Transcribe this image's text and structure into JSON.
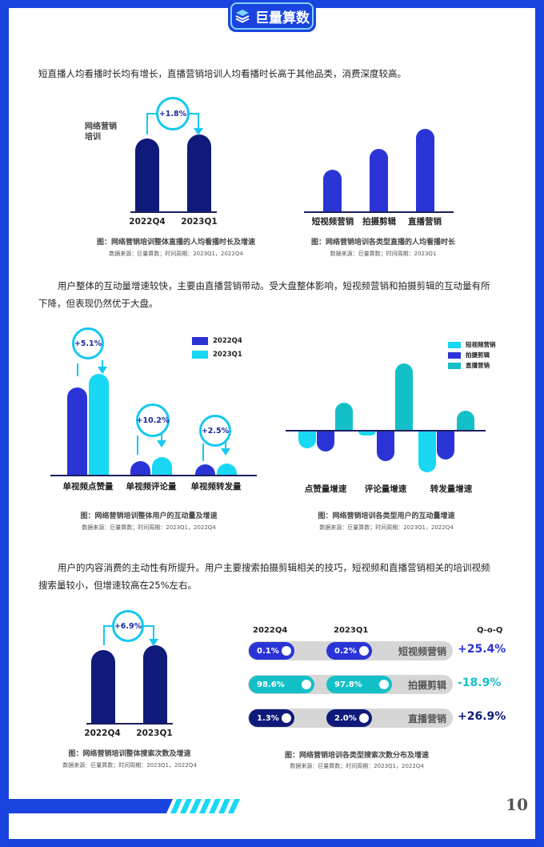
{
  "logo": {
    "text": "巨量算数",
    "icon": "brand-logo-icon"
  },
  "paragraphs": {
    "p1": "短直播人均看播时长均有增长，直播营销培训人均看播时长高于其他品类，消费深度较高。",
    "p2a": "用户整体的互动量增速较快，主要由直播营销带动。受大盘整体影响，短视频营销和拍摄剪辑的互动量有所",
    "p2b": "下降，但表现仍然优于大盘。",
    "p3a": "用户的内容消费的主动性有所提升。用户主要搜索拍摄剪辑相关的技巧，短视频和直播营销相关的培训视频",
    "p3b": "搜索量较小，但增速较高在25%左右。"
  },
  "chart1": {
    "side_label": "网络营销\n培训",
    "bubble": "+1.8%",
    "categories": [
      "2022Q4",
      "2023Q1"
    ],
    "caption": "图：网络营销培训整体直播的人均看播时长及增速",
    "source": "数据来源：巨量算数；时间周期：2023Q1，2022Q4"
  },
  "chart2": {
    "categories": [
      "短视频营销",
      "拍摄剪辑",
      "直播营销"
    ],
    "caption": "图：网络营销培训各类型直播的人均看播时长",
    "source": "数据来源：巨量算数；时间周期：2023Q1"
  },
  "chart3": {
    "legend": [
      "2022Q4",
      "2023Q1"
    ],
    "bubbles": [
      "+5.1%",
      "+10.2%",
      "+2.5%"
    ],
    "categories": [
      "单视频点赞量",
      "单视频评论量",
      "单视频转发量"
    ],
    "caption": "图：网络营销培训整体用户的互动量及增速",
    "source": "数据来源：巨量算数；时间周期：2023Q1，2022Q4"
  },
  "chart4": {
    "legend": [
      "短视频营销",
      "拍摄剪辑",
      "直播营销"
    ],
    "categories": [
      "点赞量增速",
      "评论量增速",
      "转发量增速"
    ],
    "caption": "图：网络营销培训各类型用户的互动量增速",
    "source": "数据来源：巨量算数；时间周期：2023Q1，2022Q4"
  },
  "chart5": {
    "bubble": "+6.9%",
    "categories": [
      "2022Q4",
      "2023Q1"
    ],
    "caption": "图：网络营销培训整体搜索次数及增速",
    "source": "数据来源：巨量算数；时间周期：2023Q1，2022Q4"
  },
  "chart6": {
    "headers": {
      "q4": "2022Q4",
      "q1": "2023Q1",
      "qoq": "Q-o-Q"
    },
    "rows": [
      {
        "q4": "0.1%",
        "q1": "0.2%",
        "label": "短视频营销",
        "qoq": "+25.4%"
      },
      {
        "q4": "98.6%",
        "q1": "97.8%",
        "label": "拍摄剪辑",
        "qoq": "-18.9%"
      },
      {
        "q4": "1.3%",
        "q1": "2.0%",
        "label": "直播营销",
        "qoq": "+26.9%"
      }
    ],
    "caption": "图：网络营销培训各类型搜索次数分布及增速",
    "source": "数据来源：巨量算数；时间周期：2023Q1，2022Q4"
  },
  "colors": {
    "navy": "#0f1a7a",
    "blue": "#2a34d6",
    "cyan": "#18d8f4",
    "teal": "#14c0c8",
    "page_border": "#1a44e0"
  },
  "page_number": "10",
  "chart_data": [
    {
      "type": "bar",
      "categories": [
        "2022Q4",
        "2023Q1"
      ],
      "annotations": [
        "+1.8%"
      ]
    },
    {
      "type": "bar",
      "categories": [
        "短视频营销",
        "拍摄剪辑",
        "直播营销"
      ]
    },
    {
      "type": "bar",
      "categories": [
        "单视频点赞量",
        "单视频评论量",
        "单视频转发量"
      ],
      "series": [
        {
          "name": "2022Q4"
        },
        {
          "name": "2023Q1"
        }
      ],
      "annotations": [
        "+5.1%",
        "+10.2%",
        "+2.5%"
      ]
    },
    {
      "type": "bar",
      "categories": [
        "点赞量增速",
        "评论量增速",
        "转发量增速"
      ],
      "series": [
        {
          "name": "短视频营销"
        },
        {
          "name": "拍摄剪辑"
        },
        {
          "name": "直播营销"
        }
      ]
    },
    {
      "type": "bar",
      "categories": [
        "2022Q4",
        "2023Q1"
      ],
      "annotations": [
        "+6.9%"
      ]
    },
    {
      "type": "table",
      "columns": [
        "2022Q4",
        "2023Q1",
        "Q-o-Q"
      ],
      "rows": [
        [
          "短视频营销",
          0.1,
          0.2,
          25.4
        ],
        [
          "拍摄剪辑",
          98.6,
          97.8,
          -18.9
        ],
        [
          "直播营销",
          1.3,
          2.0,
          26.9
        ]
      ]
    }
  ]
}
